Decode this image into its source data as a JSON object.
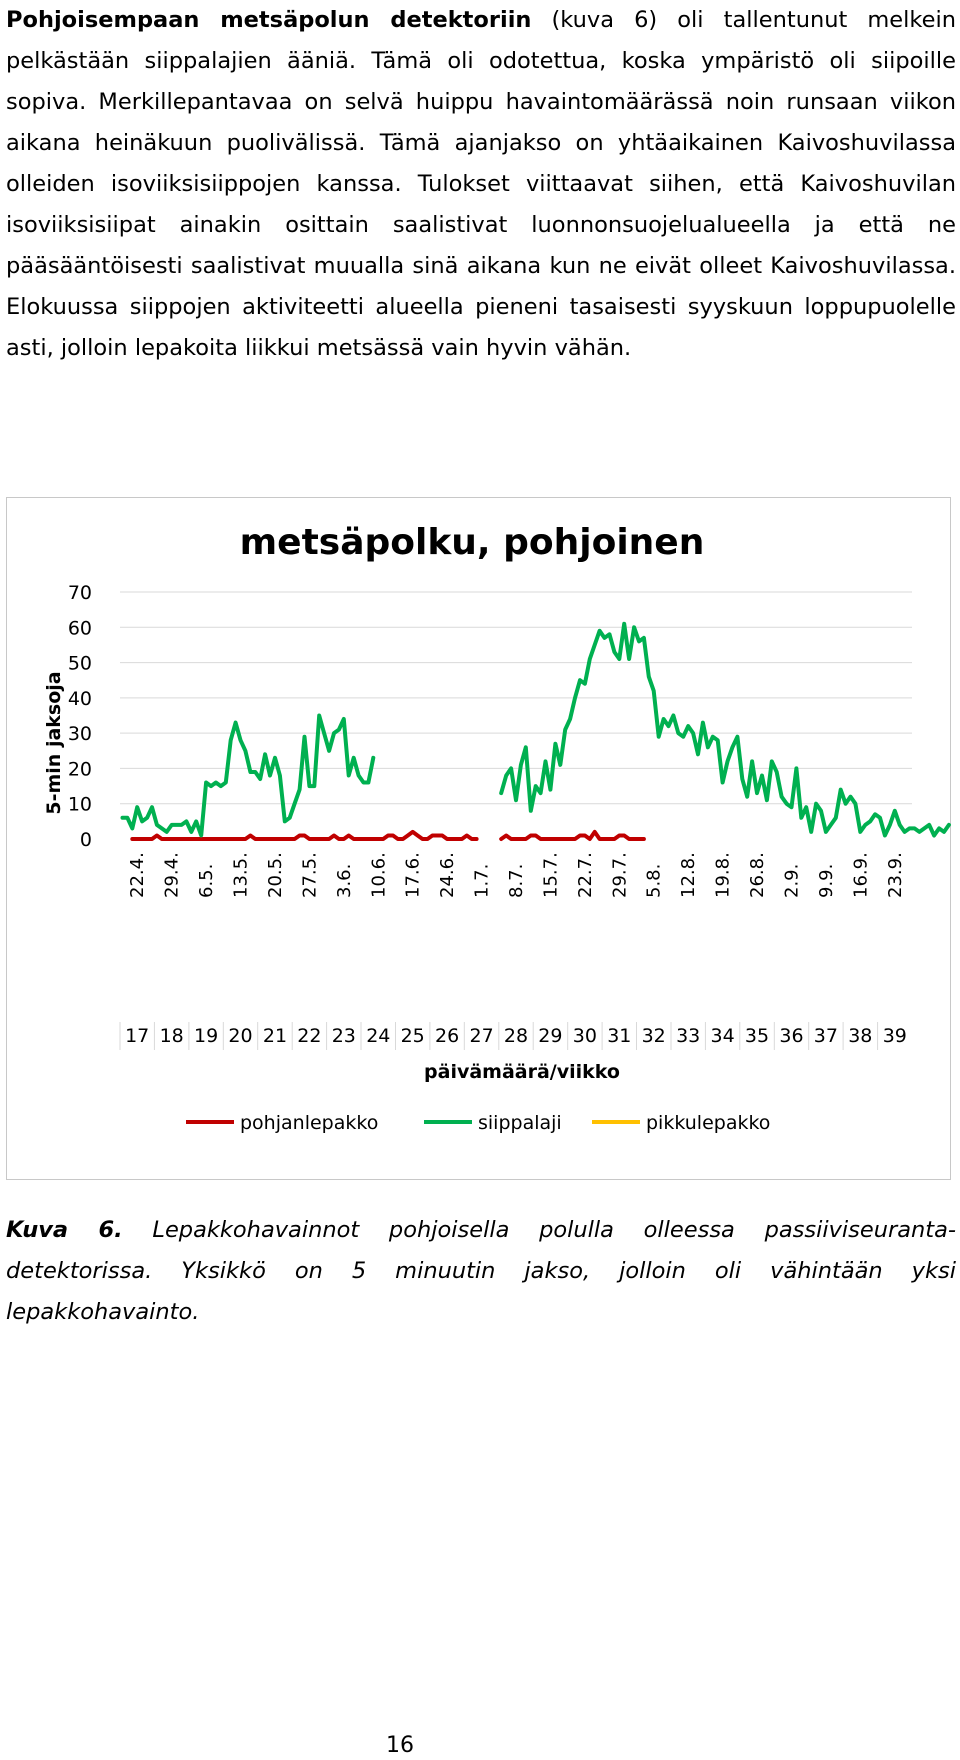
{
  "paragraph": {
    "lead": "Pohjoisempaan metsäpolun detektoriin",
    "rest": " (kuva 6) oli tallentunut melkein pelkästään siippalajien ääniä. Tämä oli odotettua, koska ympäristö oli siipoille sopiva. Merkillepantavaa on selvä huippu havaintomäärässä noin runsaan viikon aikana heinäkuun puolivälissä. Tämä ajanjakso on yhtäaikainen Kaivoshuvilassa olleiden isoviiksisiippojen kanssa. Tulokset viittaavat siihen, että Kaivoshuvilan isoviiksisiipat ainakin osittain saalistivat luonnonsuojelualueella ja että ne pääsääntöisesti saalistivat muualla sinä aikana kun ne eivät olleet Kaivoshuvilassa. Elokuussa siippojen aktiviteetti alueella pieneni tasaisesti syyskuun loppupuolelle asti, jolloin lepakoita liikkui metsässä vain hyvin vähän."
  },
  "chart_data": {
    "type": "line",
    "title": "metsäpolku, pohjoinen",
    "ylabel": "5-min jaksoja",
    "xlabel": "päivämäärä/viikko",
    "ylim": [
      0,
      70
    ],
    "yticks": [
      "0",
      "10",
      "20",
      "30",
      "40",
      "50",
      "60",
      "70"
    ],
    "date_labels": [
      "22.4.",
      "29.4.",
      "6.5.",
      "13.5.",
      "20.5.",
      "27.5.",
      "3.6.",
      "10.6.",
      "17.6.",
      "24.6.",
      "1.7.",
      "8.7.",
      "15.7.",
      "22.7.",
      "29.7.",
      "5.8.",
      "12.8.",
      "19.8.",
      "26.8.",
      "2.9.",
      "9.9.",
      "16.9.",
      "23.9."
    ],
    "week_labels": [
      "17",
      "18",
      "19",
      "20",
      "21",
      "22",
      "23",
      "24",
      "25",
      "26",
      "27",
      "28",
      "29",
      "30",
      "31",
      "32",
      "33",
      "34",
      "35",
      "36",
      "37",
      "38",
      "39"
    ],
    "legend": {
      "placement": "bottom"
    },
    "series": [
      {
        "name": "pohjanlepakko",
        "color": "#c00000",
        "segments": [
          {
            "start_day": 2,
            "values": [
              0,
              0,
              0,
              0,
              0,
              1,
              0,
              0,
              0,
              0,
              0,
              0,
              0,
              0,
              0,
              0,
              0,
              0,
              0,
              0,
              0,
              0,
              0,
              0,
              1,
              0,
              0,
              0,
              0,
              0,
              0,
              0,
              0,
              0,
              1,
              1,
              0,
              0,
              0,
              0,
              0,
              1,
              0,
              0,
              1,
              0,
              0,
              0,
              0,
              0,
              0,
              0,
              1,
              1,
              0,
              0,
              1,
              2,
              1,
              0,
              0,
              1,
              1,
              1,
              0,
              0,
              0,
              0,
              1,
              0,
              0
            ]
          },
          {
            "start_day": 77,
            "values": [
              0,
              1,
              0,
              0,
              0,
              0,
              1,
              1,
              0,
              0,
              0,
              0,
              0,
              0,
              0,
              0,
              1,
              1,
              0,
              2,
              0,
              0,
              0,
              0,
              1,
              1,
              0,
              0,
              0,
              0
            ]
          }
        ]
      },
      {
        "name": "siippalaji",
        "color": "#00b050",
        "segments": [
          {
            "start_day": 0,
            "values": [
              6,
              6,
              3,
              9,
              5,
              6,
              9,
              4,
              3,
              2,
              4,
              4,
              4,
              5,
              2,
              5,
              1,
              16,
              15,
              16,
              15,
              16,
              28,
              33,
              28,
              25,
              19,
              19,
              17,
              24,
              18,
              23,
              18,
              5,
              6,
              10,
              14,
              29,
              15,
              15,
              35,
              30,
              25,
              30,
              31,
              34,
              18,
              23,
              18,
              16,
              16,
              23
            ]
          },
          {
            "start_day": 77,
            "values": [
              13,
              18,
              20,
              11,
              21,
              26,
              8,
              15,
              13,
              22,
              14,
              27,
              21,
              31,
              34,
              40,
              45,
              44,
              51,
              55,
              59,
              57,
              58,
              53,
              51,
              61,
              51,
              60,
              56,
              57,
              46,
              42,
              29,
              34,
              32,
              35,
              30,
              29,
              32,
              30,
              24,
              33,
              26,
              29,
              28,
              16,
              22,
              26,
              29,
              17,
              12,
              22,
              13,
              18,
              11,
              22,
              19,
              12,
              10,
              9,
              20,
              6,
              9,
              2,
              10,
              8,
              2,
              4,
              6,
              14,
              10,
              12,
              10,
              2,
              4,
              5,
              7,
              6,
              1,
              4,
              8,
              4,
              2,
              3,
              3,
              2,
              3,
              4,
              1,
              3,
              2,
              4
            ]
          }
        ]
      },
      {
        "name": "pikkulepakko",
        "color": "#ffc000",
        "segments": []
      }
    ]
  },
  "caption": {
    "label": "Kuva 6.",
    "text": " Lepakkohavainnot pohjoisella polulla olleessa passiiviseuranta-detektorissa. Yksikkö on 5 minuutin jakso, jolloin oli vähintään yksi lepakkohavainto."
  },
  "page_number": "16"
}
